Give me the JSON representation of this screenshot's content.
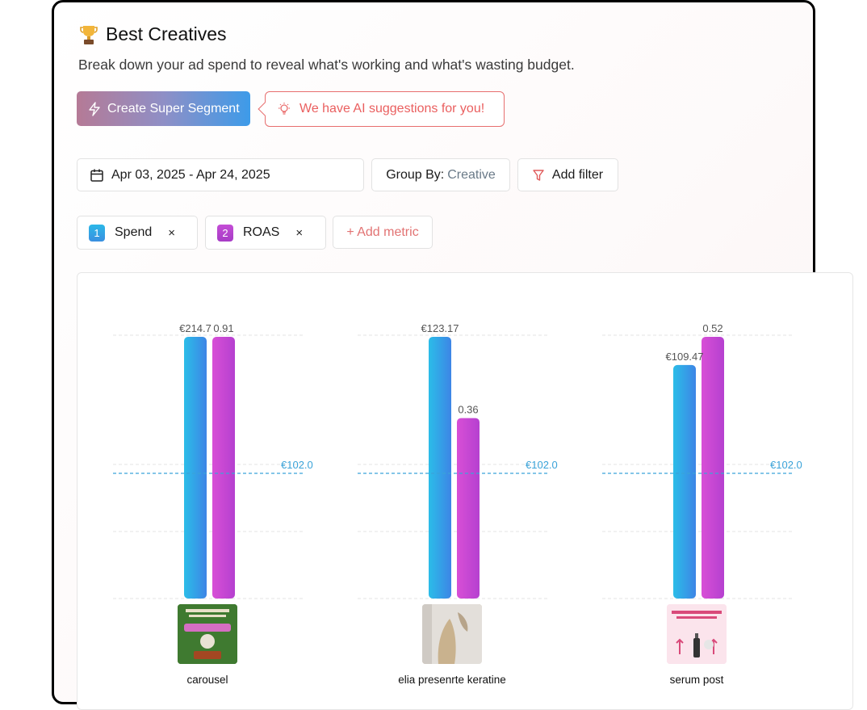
{
  "header": {
    "title": "Best Creatives",
    "subtitle": "Break down your ad spend to reveal what's working and what's wasting budget."
  },
  "actions": {
    "super_segment_label": "Create Super Segment",
    "ai_suggestion_label": "We have AI suggestions for you!"
  },
  "filters": {
    "date_range": "Apr 03, 2025 - Apr 24, 2025",
    "group_by_label": "Group By:",
    "group_by_value": "Creative",
    "add_filter_label": "Add filter"
  },
  "metrics": [
    {
      "index": "1",
      "name": "Spend",
      "remove": "×"
    },
    {
      "index": "2",
      "name": "ROAS",
      "remove": "×"
    }
  ],
  "add_metric_label": "+ Add metric",
  "colors": {
    "spend_top": "#2bbde8",
    "spend_bottom": "#3d85e6",
    "roas_top": "#d84fd6",
    "roas_bottom": "#b540d0",
    "reference_line": "#3aa3d9",
    "accent_red": "#e76f6f"
  },
  "chart_data": {
    "type": "bar",
    "categories": [
      "carousel",
      "elia presenrte keratine",
      "serum post"
    ],
    "series": [
      {
        "name": "Spend",
        "values": [
          214.7,
          123.17,
          109.47
        ],
        "labels": [
          "€214.7",
          "€123.17",
          "€109.47"
        ]
      },
      {
        "name": "ROAS",
        "values": [
          0.91,
          0.36,
          0.52
        ],
        "labels": [
          "0.91",
          "0.36",
          "0.52"
        ]
      }
    ],
    "reference_line": {
      "value": 102.0,
      "label": "€102.0"
    },
    "grid": true
  }
}
